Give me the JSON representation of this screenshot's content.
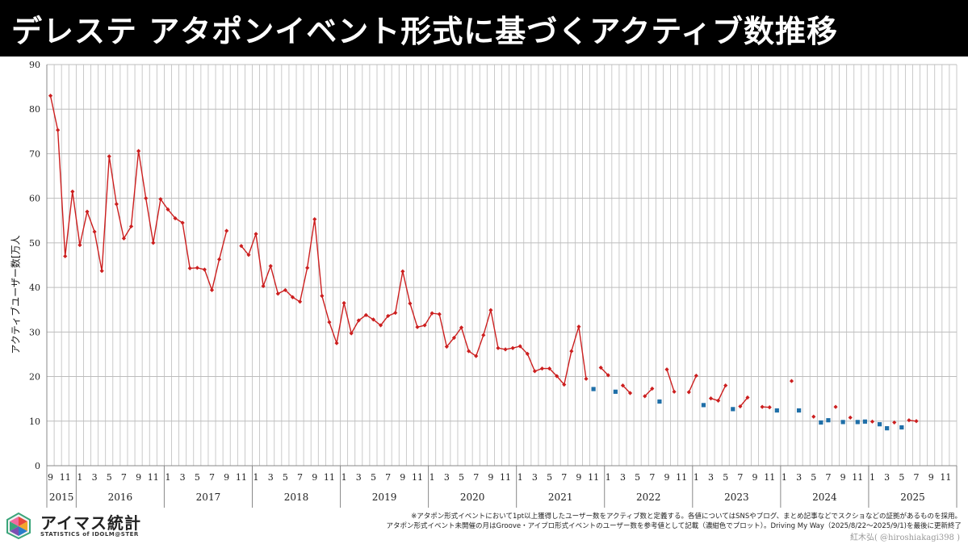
{
  "title": "デレステ アタポンイベント形式に基づくアクティブ数推移",
  "ylabel": "アクティブユーザー数[万人",
  "logo": {
    "name": "アイマス統計",
    "subtitle": "STATISTICS of IDOLM@STER"
  },
  "notes": {
    "line1": "※アタポン形式イベントにおいて1pt以上獲得したユーザー数をアクティブ数と定義する。各値についてはSNSやブログ、まとめ記事などでスクショなどの証拠があるものを採用。",
    "line2": "アタポン形式イベント未開催の月はGroove・アイプロ形式イベントのユーザー数を参考値として記載（濃紺色でプロット）。Driving My Way（2025/8/22〜2025/9/1)を最後に更新終了"
  },
  "credit": "紅木弘( @hiroshiakagi398 )",
  "colors": {
    "series_main": "#cc1f1f",
    "series_reference": "#1f6fa8",
    "grid": "#bdbdbd",
    "axis": "#888888"
  },
  "chart_data": {
    "type": "line",
    "ylim": [
      0,
      90
    ],
    "yticks": [
      0,
      10,
      20,
      30,
      40,
      50,
      60,
      70,
      80,
      90
    ],
    "grid": true,
    "x_start": "2015-09",
    "x_end": "2025-12",
    "month_tick_labels": [
      "9",
      "11",
      "1",
      "3",
      "5",
      "7",
      "9",
      "11",
      "1",
      "3",
      "5",
      "7",
      "9",
      "11",
      "1",
      "3",
      "5",
      "7",
      "9",
      "11",
      "1",
      "3",
      "5",
      "7",
      "9",
      "11",
      "1",
      "3",
      "5",
      "7",
      "9",
      "11",
      "1",
      "3",
      "5",
      "7",
      "9",
      "11",
      "1",
      "3",
      "5",
      "7",
      "9",
      "11",
      "1",
      "3",
      "5",
      "7",
      "9",
      "11",
      "1",
      "3",
      "5",
      "7",
      "9",
      "11",
      "1",
      "3",
      "5",
      "7",
      "9",
      "11",
      "1",
      "3",
      "5",
      "7",
      "9",
      "11"
    ],
    "year_labels": [
      "2015",
      "2016",
      "2017",
      "2018",
      "2019",
      "2020",
      "2021",
      "2022",
      "2023",
      "2024",
      "2025"
    ],
    "series": [
      {
        "style": "line-diamond",
        "points": [
          [
            "2015-09",
            83.0
          ],
          [
            "2015-10",
            75.3
          ],
          [
            "2015-11",
            47.0
          ],
          [
            "2015-12",
            61.5
          ],
          [
            "2016-01",
            49.5
          ],
          [
            "2016-02",
            57.0
          ],
          [
            "2016-03",
            52.5
          ],
          [
            "2016-04",
            43.7
          ],
          [
            "2016-05",
            69.4
          ],
          [
            "2016-06",
            58.7
          ],
          [
            "2016-07",
            51.0
          ],
          [
            "2016-08",
            53.7
          ],
          [
            "2016-09",
            70.6
          ],
          [
            "2016-10",
            60.0
          ],
          [
            "2016-11",
            50.0
          ],
          [
            "2016-12",
            59.8
          ],
          [
            "2017-01",
            57.5
          ],
          [
            "2017-02",
            55.5
          ],
          [
            "2017-03",
            54.5
          ],
          [
            "2017-04",
            44.3
          ],
          [
            "2017-05",
            44.4
          ],
          [
            "2017-06",
            44.0
          ],
          [
            "2017-07",
            39.4
          ],
          [
            "2017-08",
            46.3
          ],
          [
            "2017-09",
            52.7
          ],
          null,
          [
            "2017-11",
            49.3
          ],
          [
            "2017-12",
            47.3
          ],
          [
            "2018-01",
            52.0
          ],
          [
            "2018-02",
            40.3
          ],
          [
            "2018-03",
            44.8
          ],
          [
            "2018-04",
            38.6
          ],
          [
            "2018-05",
            39.4
          ],
          [
            "2018-06",
            37.8
          ],
          [
            "2018-07",
            36.8
          ],
          [
            "2018-08",
            44.4
          ],
          [
            "2018-09",
            55.3
          ],
          [
            "2018-10",
            38.1
          ],
          [
            "2018-11",
            32.2
          ],
          [
            "2018-12",
            27.5
          ],
          [
            "2019-01",
            36.5
          ],
          [
            "2019-02",
            29.7
          ],
          [
            "2019-03",
            32.6
          ],
          [
            "2019-04",
            33.8
          ],
          [
            "2019-05",
            32.8
          ],
          [
            "2019-06",
            31.5
          ],
          [
            "2019-07",
            33.6
          ],
          [
            "2019-08",
            34.3
          ],
          [
            "2019-09",
            43.6
          ],
          [
            "2019-10",
            36.4
          ],
          [
            "2019-11",
            31.1
          ],
          [
            "2019-12",
            31.5
          ],
          [
            "2020-01",
            34.2
          ],
          [
            "2020-02",
            34.0
          ],
          [
            "2020-03",
            26.7
          ],
          [
            "2020-04",
            28.7
          ],
          [
            "2020-05",
            31.0
          ],
          [
            "2020-06",
            25.7
          ],
          [
            "2020-07",
            24.6
          ],
          [
            "2020-08",
            29.3
          ],
          [
            "2020-09",
            34.9
          ],
          [
            "2020-10",
            26.4
          ],
          [
            "2020-11",
            26.1
          ],
          [
            "2020-12",
            26.4
          ],
          [
            "2021-01",
            26.8
          ],
          [
            "2021-02",
            25.1
          ],
          [
            "2021-03",
            21.2
          ],
          [
            "2021-04",
            21.8
          ],
          [
            "2021-05",
            21.8
          ],
          [
            "2021-06",
            20.1
          ],
          [
            "2021-07",
            18.2
          ],
          [
            "2021-08",
            25.7
          ],
          [
            "2021-09",
            31.2
          ],
          [
            "2021-10",
            19.5
          ],
          null,
          [
            "2021-12",
            22.0
          ],
          [
            "2022-01",
            20.3
          ],
          null,
          [
            "2022-03",
            18.0
          ],
          [
            "2022-04",
            16.3
          ],
          null,
          [
            "2022-06",
            15.6
          ],
          [
            "2022-07",
            17.3
          ],
          null,
          [
            "2022-09",
            21.6
          ],
          [
            "2022-10",
            16.6
          ],
          null,
          [
            "2022-12",
            16.5
          ],
          [
            "2023-01",
            20.2
          ],
          null,
          [
            "2023-03",
            15.1
          ],
          [
            "2023-04",
            14.6
          ],
          [
            "2023-05",
            18.0
          ],
          null,
          [
            "2023-07",
            13.3
          ],
          [
            "2023-08",
            15.3
          ],
          null,
          [
            "2023-10",
            13.2
          ],
          [
            "2023-11",
            13.1
          ],
          null,
          [
            "2024-02",
            19.0
          ],
          null,
          [
            "2024-05",
            11.0
          ],
          null,
          [
            "2024-08",
            13.2
          ],
          null,
          [
            "2024-10",
            10.8
          ],
          null,
          [
            "2025-01",
            9.9
          ],
          null,
          [
            "2025-04",
            9.7
          ],
          null,
          [
            "2025-06",
            10.2
          ],
          [
            "2025-07",
            10.0
          ]
        ]
      },
      {
        "style": "square",
        "points": [
          [
            "2021-11",
            17.2
          ],
          [
            "2022-02",
            16.6
          ],
          [
            "2022-08",
            14.4
          ],
          [
            "2023-02",
            13.6
          ],
          [
            "2023-06",
            12.7
          ],
          [
            "2023-12",
            12.4
          ],
          [
            "2024-03",
            12.4
          ],
          [
            "2024-06",
            9.7
          ],
          [
            "2024-07",
            10.2
          ],
          [
            "2024-09",
            9.8
          ],
          [
            "2024-11",
            9.8
          ],
          [
            "2024-12",
            9.9
          ],
          [
            "2025-02",
            9.3
          ],
          [
            "2025-03",
            8.4
          ],
          [
            "2025-05",
            8.6
          ]
        ]
      }
    ]
  }
}
